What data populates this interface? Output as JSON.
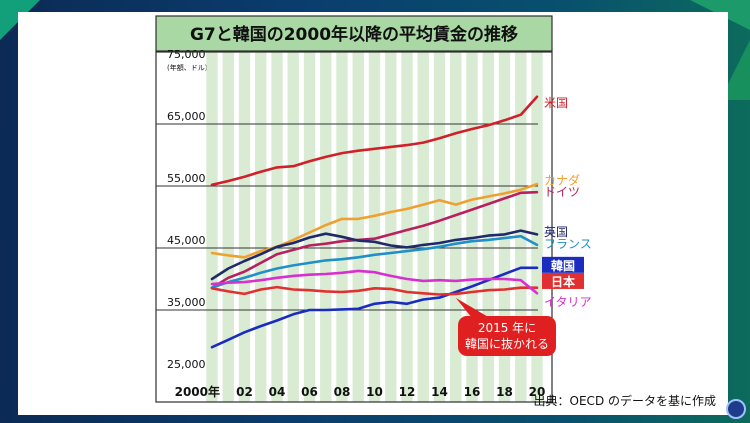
{
  "chart_data": {
    "type": "line",
    "title": "G7と韓国の2000年以降の平均賃金の推移",
    "y_unit_label": "(年額、ドル)",
    "ylim": [
      25000,
      75000
    ],
    "y_ticks": [
      25000,
      35000,
      45000,
      55000,
      65000,
      75000
    ],
    "y_tick_labels": [
      "25,000",
      "35,000",
      "45,000",
      "55,000",
      "65,000",
      "75,000"
    ],
    "x": [
      2000,
      2001,
      2002,
      2003,
      2004,
      2005,
      2006,
      2007,
      2008,
      2009,
      2010,
      2011,
      2012,
      2013,
      2014,
      2015,
      2016,
      2017,
      2018,
      2019,
      2020
    ],
    "x_ticks": [
      2000,
      2002,
      2004,
      2006,
      2008,
      2010,
      2012,
      2014,
      2016,
      2018,
      2020
    ],
    "x_tick_labels": [
      "2000年",
      "02",
      "04",
      "06",
      "08",
      "10",
      "12",
      "14",
      "16",
      "18",
      "20"
    ],
    "grid": "horizontal-major",
    "series": [
      {
        "name": "米国",
        "color": "#d0202a",
        "values": [
          55200,
          55800,
          56500,
          57300,
          58000,
          58200,
          59000,
          59700,
          60300,
          60700,
          61000,
          61300,
          61600,
          62000,
          62700,
          63500,
          64200,
          64800,
          65600,
          66500,
          69400
        ]
      },
      {
        "name": "カナダ",
        "color": "#f0a030",
        "values": [
          44200,
          43800,
          43500,
          44500,
          45200,
          46300,
          47500,
          48700,
          49700,
          49700,
          50200,
          50800,
          51300,
          52000,
          52700,
          52000,
          52800,
          53300,
          53800,
          54400,
          55300
        ]
      },
      {
        "name": "ドイツ",
        "color": "#b82060",
        "values": [
          38600,
          40200,
          41200,
          42600,
          44000,
          44700,
          45400,
          45700,
          46100,
          46300,
          46500,
          47200,
          47900,
          48600,
          49400,
          50300,
          51200,
          52100,
          53000,
          53900,
          54000
        ]
      },
      {
        "name": "英国",
        "color": "#202a6a",
        "values": [
          40000,
          41700,
          42900,
          44000,
          45200,
          45800,
          46700,
          47300,
          46800,
          46200,
          46000,
          45400,
          45100,
          45500,
          45800,
          46300,
          46600,
          47000,
          47200,
          47800,
          47200
        ]
      },
      {
        "name": "フランス",
        "color": "#2090c8",
        "values": [
          38600,
          39500,
          40200,
          41000,
          41700,
          42200,
          42600,
          43000,
          43200,
          43500,
          43900,
          44200,
          44500,
          44800,
          45200,
          45700,
          46100,
          46300,
          46600,
          46900,
          45500
        ]
      },
      {
        "name": "韓国",
        "color": "#1b2cc0",
        "values": [
          29000,
          30200,
          31400,
          32400,
          33300,
          34300,
          35000,
          35000,
          35100,
          35200,
          36000,
          36300,
          36000,
          36700,
          37000,
          37900,
          38800,
          39800,
          40800,
          41800,
          41800
        ]
      },
      {
        "name": "日本",
        "color": "#e23030",
        "values": [
          38500,
          38000,
          37600,
          38300,
          38700,
          38300,
          38200,
          38000,
          37900,
          38100,
          38500,
          38400,
          37900,
          37700,
          37500,
          37600,
          37900,
          38200,
          38300,
          38600,
          38600
        ]
      },
      {
        "name": "イタリア",
        "color": "#d830d0",
        "values": [
          39200,
          39400,
          39500,
          39800,
          40200,
          40500,
          40700,
          40800,
          41000,
          41300,
          41100,
          40500,
          40000,
          39700,
          39800,
          39700,
          39900,
          40000,
          40000,
          39800,
          37700
        ]
      }
    ],
    "series_label_y_values": {
      "米国": 68200,
      "カナダ": 55700,
      "ドイツ": 53900,
      "英国": 47400,
      "フランス": 45500,
      "韓国": 41800,
      "日本": 39200,
      "イタリア": 36100
    },
    "highlight_label_series": [
      "韓国",
      "日本"
    ],
    "annotations": [
      {
        "text_lines": [
          "2015 年に",
          "韓国に抜かれる"
        ],
        "color": "#e02020",
        "text_color": "#ffffff",
        "points_to": [
          2015,
          37600
        ]
      }
    ],
    "source": "出典：OECD のデータを基に作成"
  }
}
